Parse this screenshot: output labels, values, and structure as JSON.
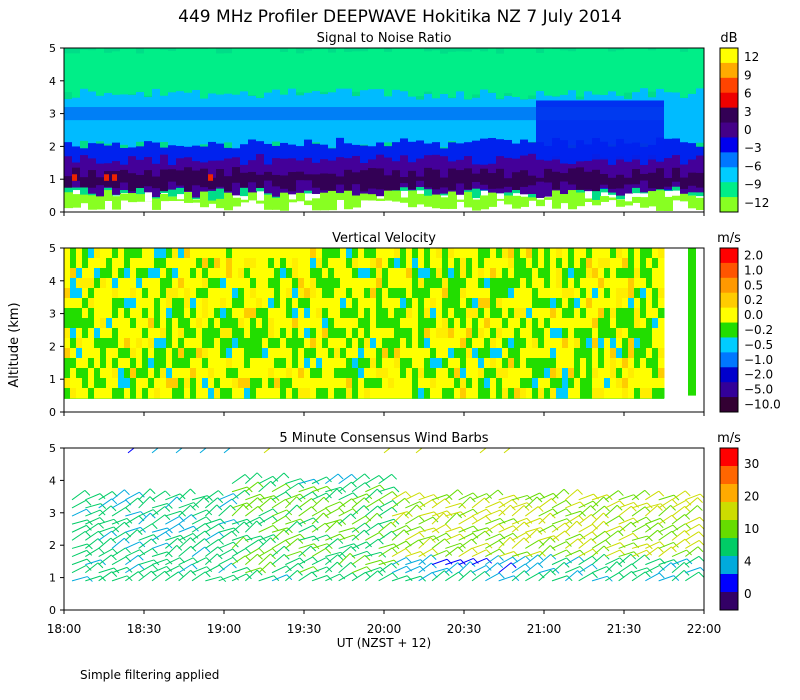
{
  "title": "449 MHz Profiler DEEPWAVE Hokitika NZ  7 July 2014",
  "footnote": "Simple filtering applied",
  "y_axis_label": "Altitude (km)",
  "x_axis": {
    "label": "UT  (NZST + 12)",
    "ticks": [
      "18:00",
      "18:30",
      "19:00",
      "19:30",
      "20:00",
      "20:30",
      "21:00",
      "21:30",
      "22:00"
    ],
    "range_hours": [
      18,
      22
    ]
  },
  "chart_data": [
    {
      "type": "heatmap",
      "title": "Signal to Noise Ratio",
      "units": "dB",
      "xlim": [
        18,
        22
      ],
      "ylim": [
        0,
        5
      ],
      "yticks": [
        "0",
        "1",
        "2",
        "3",
        "4",
        "5"
      ],
      "data_gap": [
        21.75,
        21.9
      ],
      "colorbar": {
        "labels": [
          "12",
          "9",
          "6",
          "3",
          "0",
          "−3",
          "−6",
          "−9",
          "−12"
        ],
        "colors": [
          "#ffff00",
          "#ffaa00",
          "#ff4400",
          "#ee0000",
          "#330055",
          "#440088",
          "#0000ee",
          "#0077ff",
          "#00ccff",
          "#00ee88",
          "#88ff22"
        ]
      },
      "summary_layers_km": [
        {
          "altitude_range": [
            0.2,
            0.5
          ],
          "snr_dB": -12
        },
        {
          "altitude_range": [
            0.5,
            0.8
          ],
          "snr_dB": -6
        },
        {
          "altitude_range": [
            0.8,
            1.3
          ],
          "snr_dB": 3
        },
        {
          "altitude_range": [
            1.3,
            1.6
          ],
          "snr_dB": 0
        },
        {
          "altitude_range": [
            1.6,
            2.1
          ],
          "snr_dB": -3
        },
        {
          "altitude_range": [
            2.1,
            3.5
          ],
          "snr_dB": -6
        },
        {
          "altitude_range": [
            3.5,
            5.0
          ],
          "snr_dB": -9
        }
      ]
    },
    {
      "type": "heatmap",
      "title": "Vertical Velocity",
      "units": "m/s",
      "xlim": [
        18,
        22
      ],
      "ylim": [
        0,
        5
      ],
      "yticks": [
        "0",
        "1",
        "2",
        "3",
        "4",
        "5"
      ],
      "data_gap": [
        21.75,
        21.9
      ],
      "colorbar": {
        "labels": [
          "2.0",
          "1.0",
          "0.5",
          "0.2",
          "0.0",
          "−0.2",
          "−0.5",
          "−1.0",
          "−2.0",
          "−5.0",
          "−10.0"
        ],
        "colors": [
          "#ff0000",
          "#ff5500",
          "#ff9900",
          "#ffcc00",
          "#ffff00",
          "#22dd00",
          "#00ccff",
          "#0077ff",
          "#0000cc",
          "#330099",
          "#330033"
        ]
      },
      "typical_range_m_s": [
        -0.5,
        0.5
      ]
    },
    {
      "type": "scatter",
      "title": "5 Minute Consensus Wind Barbs",
      "units": "m/s",
      "xlim": [
        18,
        22
      ],
      "ylim": [
        0,
        5
      ],
      "yticks": [
        "0",
        "1",
        "2",
        "3",
        "4",
        "5"
      ],
      "colorbar": {
        "labels": [
          "30",
          "20",
          "10",
          "4",
          "0"
        ],
        "colors": [
          "#ff0000",
          "#ff6600",
          "#ffaa00",
          "#ccdd00",
          "#66dd00",
          "#00cc66",
          "#00aadd",
          "#0000ff",
          "#330066"
        ]
      },
      "summary_speeds_m_s": [
        {
          "time_range": [
            18.0,
            19.0
          ],
          "altitude_range": [
            1.0,
            3.5
          ],
          "speed": 8
        },
        {
          "time_range": [
            19.0,
            20.0
          ],
          "altitude_range": [
            1.0,
            3.8
          ],
          "speed": 10
        },
        {
          "time_range": [
            20.0,
            21.0
          ],
          "altitude_range": [
            1.0,
            1.4
          ],
          "speed": 5
        },
        {
          "time_range": [
            20.0,
            21.9
          ],
          "altitude_range": [
            1.5,
            3.5
          ],
          "speed": 14
        },
        {
          "time_range": [
            18.2,
            19.1
          ],
          "altitude_range": [
            4.6,
            5.0
          ],
          "speed": 5
        }
      ]
    }
  ]
}
